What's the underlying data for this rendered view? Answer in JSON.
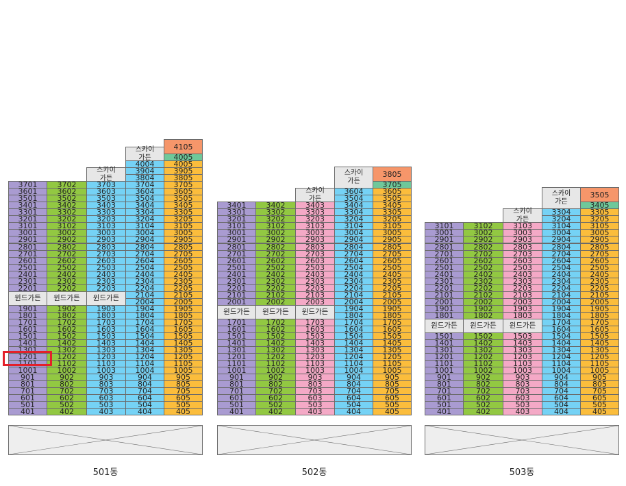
{
  "colors": {
    "col1": "#a99bd1",
    "col2": "#92c842",
    "col3_lb": "#75d2f5",
    "col3_pink": "#f4a9c6",
    "col4": "#75d2f5",
    "col5": "#fbbd3c",
    "garden": "#e7e7e7",
    "top_unit": "#f6966a",
    "second_unit": "#6fc89a",
    "highlight": "#e3202a"
  },
  "labels": {
    "wind_garden": "윈드가든",
    "sky_garden": "스카이 가든"
  },
  "buildings": [
    {
      "name": "501동",
      "col3_color": "col3_lb",
      "top_unit": "4105",
      "second_unit": "4005",
      "highlight_unit": "1201"
    },
    {
      "name": "502동",
      "col3_color": "col3_pink",
      "top_unit": "3805",
      "second_unit": "3705"
    },
    {
      "name": "503동",
      "col3_color": "col3_pink",
      "top_unit": "3505",
      "second_unit": "3405"
    }
  ]
}
